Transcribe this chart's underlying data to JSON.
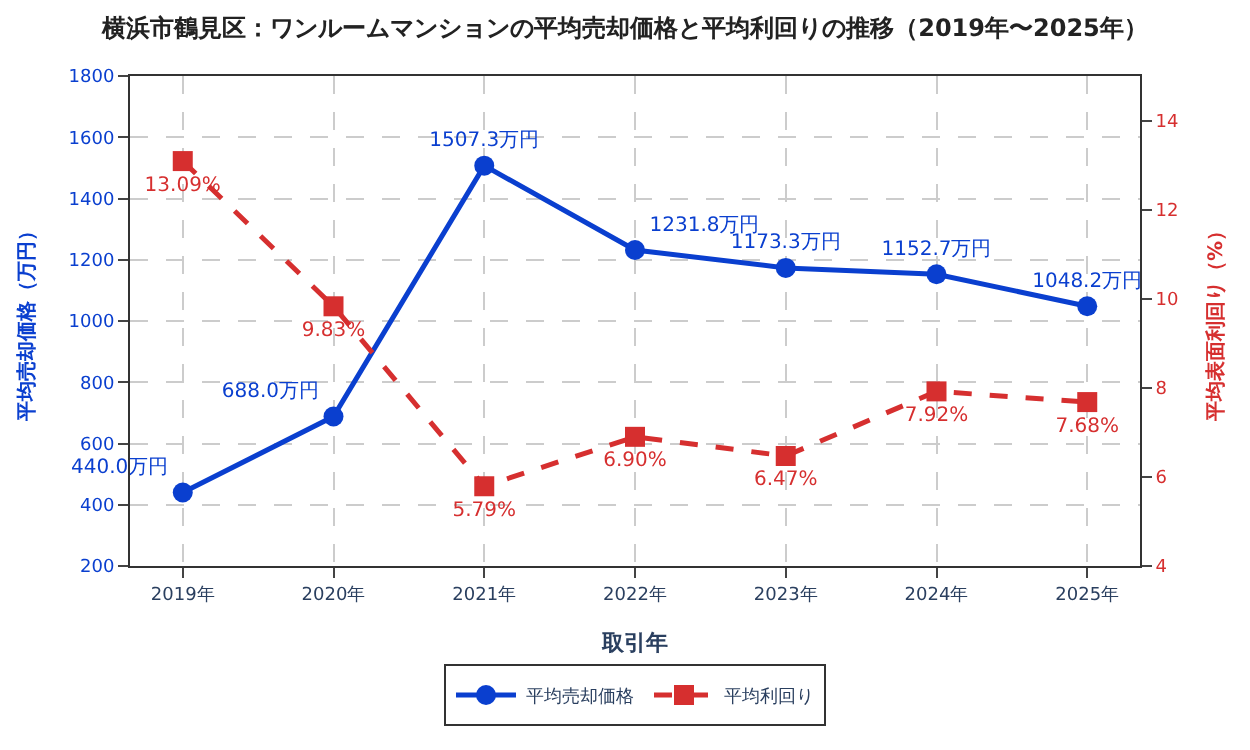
{
  "chart_data": {
    "type": "line",
    "title": "横浜市鶴見区：ワンルームマンションの平均売却価格と平均利回りの推移（2019年〜2025年）",
    "xlabel": "取引年",
    "ylabel": "平均売却価格（万円）",
    "y2label": "平均表面利回り（%）",
    "categories": [
      "2019年",
      "2020年",
      "2021年",
      "2022年",
      "2023年",
      "2024年",
      "2025年"
    ],
    "series": [
      {
        "name": "平均売却価格",
        "color": "#0a3fcf",
        "marker": "circle",
        "line_style": "solid",
        "values": [
          440.0,
          688.0,
          1507.3,
          1231.8,
          1173.3,
          1152.7,
          1048.2
        ],
        "value_labels": [
          "440.0万円",
          "688.0万円",
          "1507.3万円",
          "1231.8万円",
          "1173.3万円",
          "1152.7万円",
          "1048.2万円"
        ]
      },
      {
        "name": "平均利回り",
        "color": "#d62f2f",
        "marker": "square",
        "line_style": "dashed",
        "axis": "y2",
        "values": [
          13.09,
          9.83,
          5.79,
          6.9,
          6.47,
          7.92,
          7.68
        ],
        "value_labels": [
          "13.09%",
          "9.83%",
          "5.79%",
          "6.90%",
          "6.47%",
          "7.92%",
          "7.68%"
        ]
      }
    ],
    "ylim": [
      200,
      1800
    ],
    "yticks": [
      200,
      400,
      600,
      800,
      1000,
      1200,
      1400,
      1600,
      1800
    ],
    "y2lim": [
      4,
      15
    ],
    "y2ticks": [
      4,
      6,
      8,
      10,
      12,
      14
    ],
    "grid": true,
    "legend": "bottom"
  }
}
